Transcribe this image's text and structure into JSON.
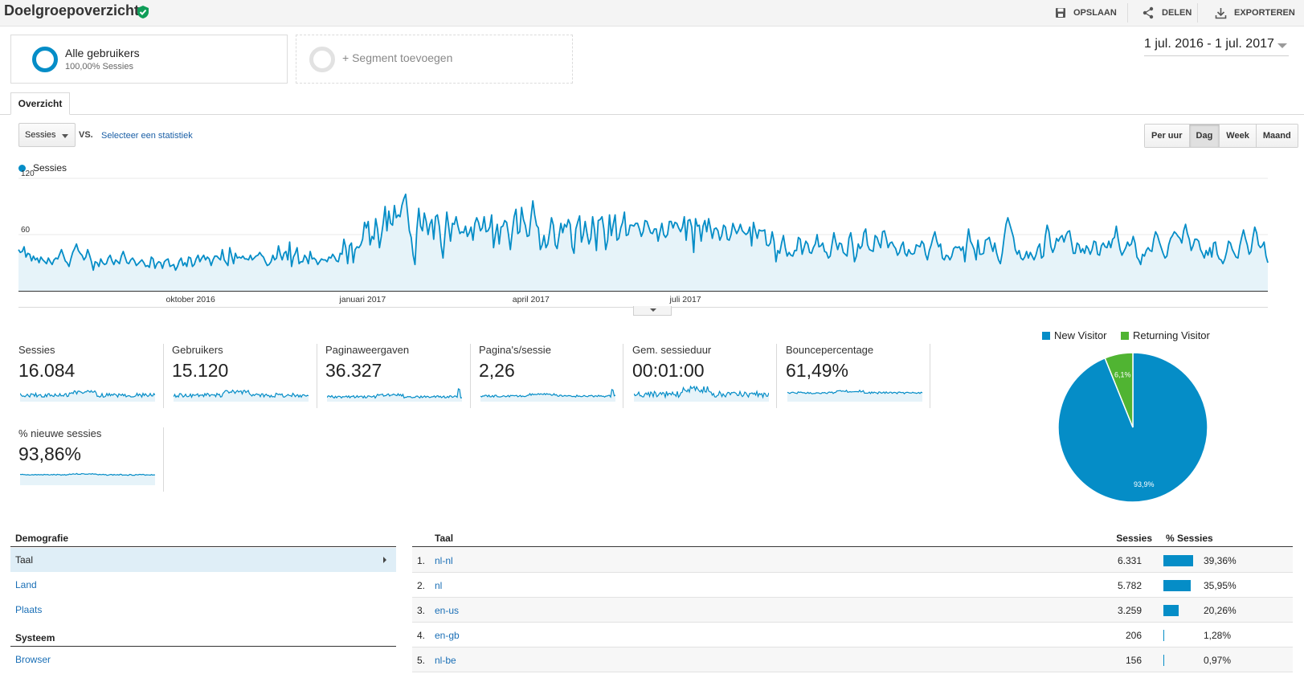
{
  "header": {
    "title": "Doelgroepoverzicht",
    "save_label": "OPSLAAN",
    "share_label": "DELEN",
    "export_label": "EXPORTEREN"
  },
  "segments": {
    "active_title": "Alle gebruikers",
    "active_sub": "100,00% Sessies",
    "add_label": "+ Segment toevoegen"
  },
  "date_range": "1 jul. 2016 - 1 jul. 2017",
  "tabs": [
    "Overzicht"
  ],
  "controls": {
    "metric": "Sessies",
    "vs": "VS.",
    "compare_link": "Selecteer een statistiek",
    "granularity": [
      "Per uur",
      "Dag",
      "Week",
      "Maand"
    ],
    "granularity_active": "Dag"
  },
  "colors": {
    "accent": "#058dc7",
    "returning": "#50b432",
    "area_fill": "#e6f3f9",
    "link": "#1a6fb6"
  },
  "chart_data": {
    "type": "line",
    "series": [
      {
        "name": "Sessies",
        "values": [
          44,
          41,
          42,
          47,
          36,
          40,
          39,
          32,
          37,
          33,
          35,
          30,
          36,
          33,
          31,
          29,
          35,
          31,
          28,
          33,
          35,
          34,
          39,
          44,
          38,
          32,
          30,
          26,
          34,
          41,
          45,
          50,
          43,
          40,
          38,
          33,
          36,
          44,
          38,
          31,
          22,
          31,
          30,
          26,
          34,
          30,
          28,
          29,
          35,
          38,
          32,
          28,
          33,
          31,
          29,
          37,
          42,
          36,
          30,
          29,
          33,
          35,
          32,
          27,
          29,
          31,
          33,
          30,
          26,
          27,
          25,
          36,
          34,
          24,
          29,
          31,
          30,
          24,
          31,
          33,
          34,
          26,
          27,
          28,
          22,
          26,
          32,
          35,
          27,
          30,
          26,
          36,
          35,
          26,
          28,
          34,
          38,
          31,
          35,
          38,
          33,
          36,
          34,
          27,
          33,
          37,
          37,
          35,
          33,
          44,
          33,
          30,
          27,
          46,
          37,
          29,
          40,
          35,
          36,
          35,
          37,
          34,
          34,
          33,
          38,
          33,
          35,
          37,
          38,
          41,
          38,
          36,
          31,
          27,
          28,
          31,
          38,
          33,
          35,
          48,
          39,
          33,
          40,
          42,
          33,
          52,
          26,
          36,
          40,
          46,
          29,
          31,
          31,
          38,
          35,
          29,
          42,
          34,
          35,
          33,
          28,
          31,
          34,
          33,
          33,
          31,
          36,
          35,
          39,
          36,
          32,
          31,
          40,
          39,
          55,
          46,
          29,
          48,
          51,
          30,
          44,
          47,
          46,
          49,
          55,
          73,
          67,
          74,
          49,
          58,
          55,
          77,
          66,
          46,
          58,
          72,
          90,
          64,
          85,
          72,
          70,
          91,
          78,
          81,
          79,
          91,
          98,
          103,
          84,
          64,
          57,
          38,
          28,
          65,
          88,
          69,
          64,
          83,
          74,
          60,
          71,
          76,
          55,
          79,
          81,
          69,
          48,
          35,
          59,
          84,
          69,
          53,
          72,
          71,
          79,
          69,
          61,
          63,
          62,
          69,
          58,
          62,
          68,
          54,
          72,
          78,
          73,
          64,
          67,
          79,
          63,
          64,
          68,
          81,
          46,
          60,
          71,
          50,
          68,
          69,
          75,
          73,
          60,
          44,
          63,
          79,
          87,
          61,
          63,
          89,
          76,
          70,
          58,
          59,
          78,
          96,
          81,
          70,
          67,
          44,
          49,
          59,
          46,
          50,
          63,
          78,
          70,
          49,
          45,
          58,
          72,
          62,
          71,
          68,
          76,
          71,
          47,
          40,
          66,
          73,
          80,
          52,
          60,
          74,
          61,
          50,
          56,
          79,
          65,
          43,
          75,
          76,
          79,
          66,
          44,
          54,
          81,
          59,
          71,
          81,
          54,
          56,
          67,
          73,
          84,
          59,
          60,
          70,
          70,
          69,
          72,
          72,
          66,
          58,
          63,
          75,
          74,
          68,
          62,
          61,
          66,
          66,
          53,
          63,
          72,
          60,
          57,
          60,
          74,
          74,
          67,
          73,
          72,
          67,
          63,
          68,
          79,
          54,
          75,
          76,
          68,
          41,
          77,
          69,
          70,
          53,
          69,
          75,
          63,
          77,
          67,
          56,
          66,
          67,
          64,
          54,
          59,
          70,
          68,
          55,
          54,
          60,
          72,
          66,
          61,
          65,
          71,
          64,
          62,
          60,
          62,
          68,
          48,
          73,
          64,
          56,
          65,
          64,
          64,
          65,
          49,
          48,
          51,
          63,
          53,
          31,
          43,
          40,
          51,
          59,
          46,
          37,
          41,
          38,
          37,
          43,
          43,
          57,
          55,
          39,
          46,
          53,
          50,
          41,
          40,
          46,
          50,
          60,
          47,
          48,
          51,
          42,
          41,
          35,
          37,
          50,
          62,
          52,
          44,
          51,
          50,
          41,
          39,
          37,
          56,
          62,
          49,
          31,
          37,
          50,
          45,
          48,
          62,
          66,
          49,
          44,
          43,
          42,
          59,
          57,
          51,
          46,
          63,
          64,
          56,
          46,
          51,
          52,
          48,
          45,
          38,
          41,
          48,
          52,
          40,
          37,
          44,
          40,
          39,
          40,
          49,
          48,
          47,
          53,
          50,
          39,
          33,
          43,
          49,
          57,
          63,
          53,
          47,
          50,
          35,
          33,
          38,
          37,
          33,
          37,
          45,
          47,
          46,
          47,
          43,
          47,
          31,
          50,
          66,
          53,
          49,
          44,
          33,
          54,
          39,
          39,
          40,
          54,
          55,
          57,
          49,
          42,
          51,
          40,
          33,
          29,
          40,
          57,
          71,
          78,
          71,
          64,
          57,
          44,
          39,
          43,
          35,
          33,
          36,
          42,
          35,
          41,
          37,
          33,
          38,
          46,
          50,
          35,
          37,
          58,
          70,
          63,
          47,
          41,
          46,
          56,
          53,
          57,
          59,
          52,
          59,
          63,
          64,
          52,
          40,
          40,
          51,
          49,
          41,
          45,
          40,
          48,
          45,
          39,
          44,
          53,
          52,
          39,
          38,
          48,
          51,
          47,
          46,
          53,
          46,
          55,
          57,
          69,
          55,
          44,
          38,
          42,
          46,
          52,
          48,
          50,
          58,
          51,
          36,
          33,
          28,
          39,
          37,
          43,
          46,
          43,
          42,
          55,
          63,
          59,
          52,
          46,
          40,
          35,
          37,
          49,
          56,
          59,
          63,
          61,
          58,
          56,
          51,
          64,
          71,
          61,
          55,
          43,
          48,
          55,
          55,
          53,
          44,
          40,
          35,
          43,
          38,
          46,
          36,
          51,
          52,
          39,
          34,
          33,
          29,
          34,
          42,
          53,
          51,
          44,
          40,
          36,
          35,
          48,
          57,
          65,
          56,
          49,
          39,
          42,
          57,
          68,
          62,
          49,
          46,
          48,
          52,
          37,
          30
        ]
      }
    ],
    "x_ticks": [
      "oktober 2016",
      "januari 2017",
      "april 2017",
      "juli 2017"
    ],
    "y_ticks": [
      "120",
      "60"
    ],
    "ylim": [
      0,
      120
    ]
  },
  "metrics": [
    {
      "label": "Sessies",
      "value": "16.084"
    },
    {
      "label": "Gebruikers",
      "value": "15.120"
    },
    {
      "label": "Paginaweergaven",
      "value": "36.327"
    },
    {
      "label": "Pagina's/sessie",
      "value": "2,26"
    },
    {
      "label": "Gem. sessieduur",
      "value": "00:01:00"
    },
    {
      "label": "Bouncepercentage",
      "value": "61,49%"
    },
    {
      "label": "% nieuwe sessies",
      "value": "93,86%"
    }
  ],
  "pie": {
    "legend": [
      "New Visitor",
      "Returning Visitor"
    ],
    "slices": [
      {
        "name": "New Visitor",
        "value": 93.9,
        "label": "93,9%"
      },
      {
        "name": "Returning Visitor",
        "value": 6.1,
        "label": "6,1%"
      }
    ]
  },
  "demografie": {
    "header": "Demografie",
    "items": [
      "Taal",
      "Land",
      "Plaats"
    ],
    "active": "Taal",
    "system_header": "Systeem",
    "system_items": [
      "Browser"
    ]
  },
  "table": {
    "col_taal": "Taal",
    "col_sessies": "Sessies",
    "col_pct": "% Sessies",
    "rows": [
      {
        "idx": "1.",
        "name": "nl-nl",
        "sessions": "6.331",
        "pct": "39,36%",
        "share": 39.36
      },
      {
        "idx": "2.",
        "name": "nl",
        "sessions": "5.782",
        "pct": "35,95%",
        "share": 35.95
      },
      {
        "idx": "3.",
        "name": "en-us",
        "sessions": "3.259",
        "pct": "20,26%",
        "share": 20.26
      },
      {
        "idx": "4.",
        "name": "en-gb",
        "sessions": "206",
        "pct": "1,28%",
        "share": 1.28
      },
      {
        "idx": "5.",
        "name": "nl-be",
        "sessions": "156",
        "pct": "0,97%",
        "share": 0.97
      }
    ]
  }
}
